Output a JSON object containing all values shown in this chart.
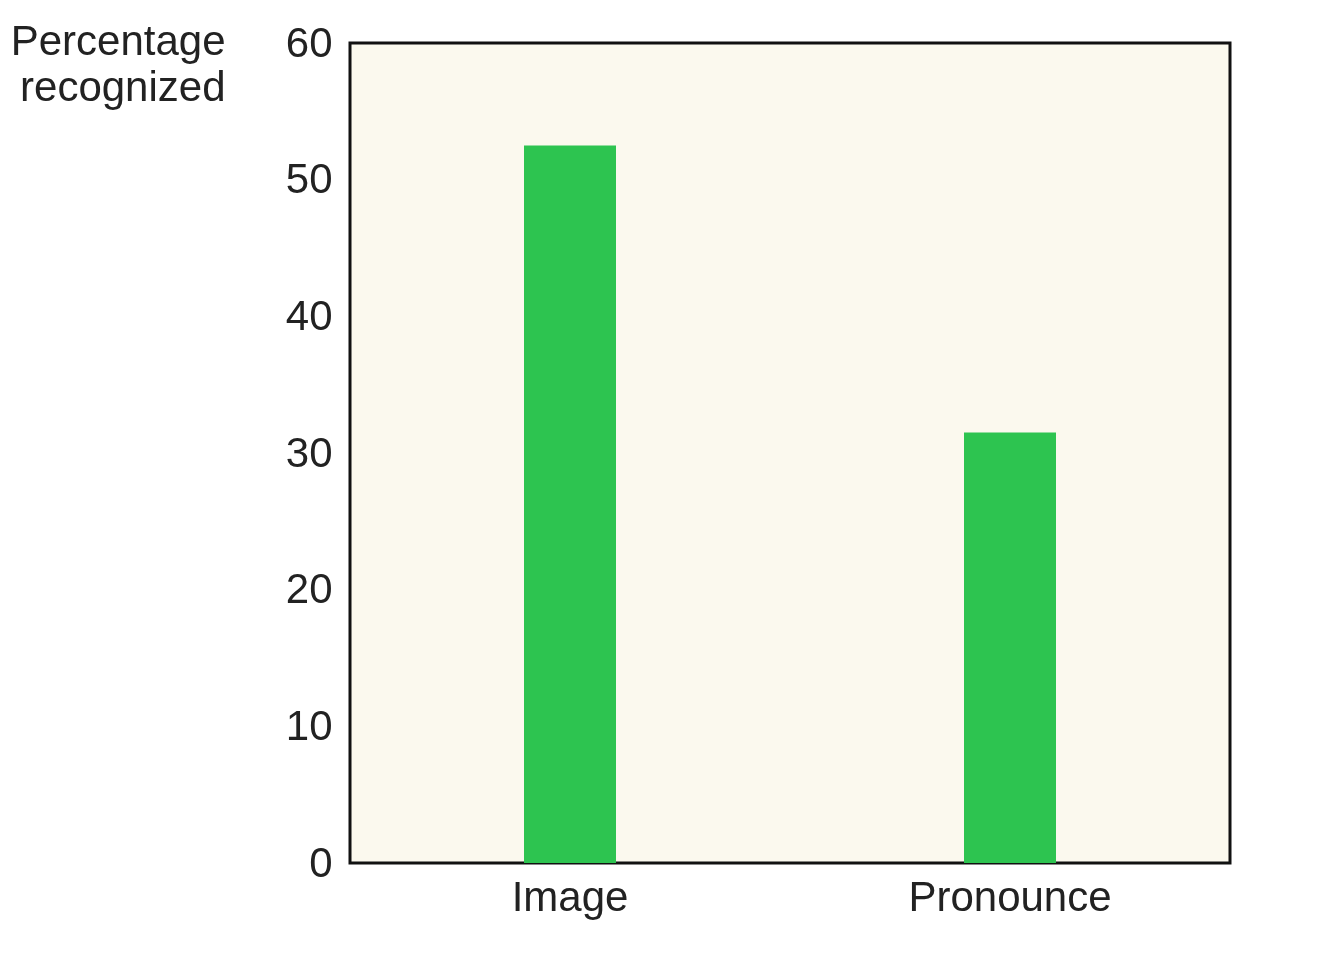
{
  "chart_data": {
    "type": "bar",
    "ylabel": "Percentage recognized",
    "categories": [
      "Image",
      "Pronounce"
    ],
    "values": [
      52.5,
      31.5
    ],
    "color": "#2dc450",
    "ylim": [
      0,
      60
    ],
    "yticks": [
      0,
      10,
      20,
      30,
      40,
      50,
      60
    ],
    "grid": false
  }
}
